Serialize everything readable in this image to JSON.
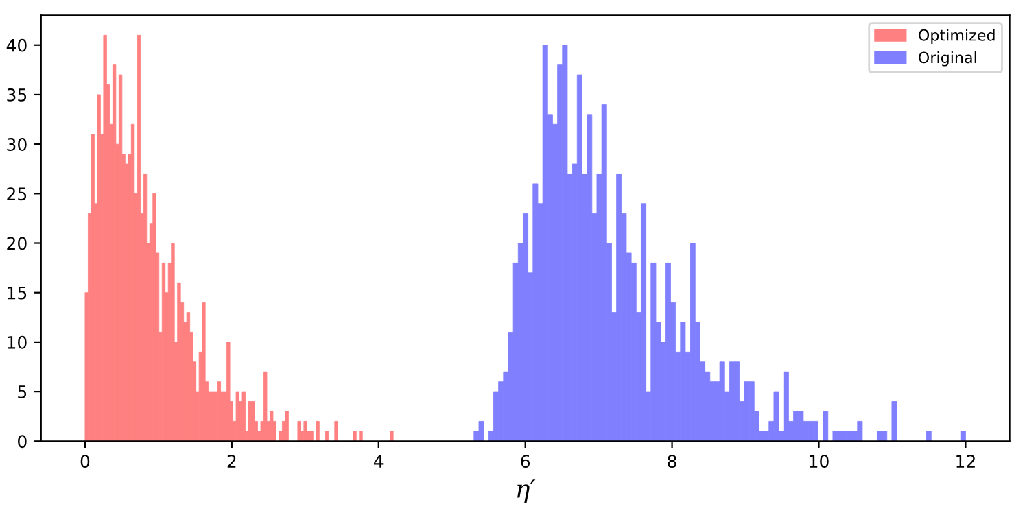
{
  "chart_data": {
    "type": "histogram",
    "xlabel": "η′",
    "xlim": [
      -0.6,
      12.6
    ],
    "xticks": [
      0,
      2,
      4,
      6,
      8,
      10,
      12
    ],
    "ylim": [
      0,
      43
    ],
    "yticks": [
      0,
      5,
      10,
      15,
      20,
      25,
      30,
      35,
      40
    ],
    "grid": false,
    "legend": "top right",
    "bins": [
      0,
      0.042,
      0.084,
      0.126,
      0.168,
      0.21,
      0.252,
      0.294,
      0.336,
      0.378,
      0.42,
      0.462,
      0.504,
      0.546,
      0.588,
      0.63,
      0.672,
      0.714,
      0.756,
      0.798,
      0.84,
      0.882,
      0.924,
      0.966,
      1.008,
      1.05,
      1.092,
      1.134,
      1.176,
      1.218,
      1.26,
      1.302,
      1.344,
      1.386,
      1.428,
      1.47,
      1.512,
      1.554,
      1.596,
      1.638,
      1.68,
      1.722,
      1.764,
      1.806,
      1.848,
      1.89,
      1.932,
      1.974,
      2.016,
      2.058,
      2.1,
      2.142,
      2.184,
      2.226,
      2.268,
      2.31,
      2.352,
      2.394,
      2.436,
      2.478,
      2.52,
      2.562,
      2.604,
      2.646,
      2.688,
      2.73,
      2.772,
      2.898,
      2.94,
      2.982,
      3.024,
      3.066,
      3.108,
      3.15,
      3.192,
      3.276,
      3.318,
      3.402,
      3.444,
      3.654,
      3.696,
      3.738,
      3.78,
      4.158,
      4.2,
      5.3,
      5.367,
      5.434,
      5.501,
      5.568,
      5.635,
      5.702,
      5.769,
      5.836,
      5.903,
      5.97,
      6.037,
      6.104,
      6.171,
      6.238,
      6.305,
      6.372,
      6.439,
      6.506,
      6.573,
      6.64,
      6.707,
      6.774,
      6.841,
      6.908,
      6.975,
      7.042,
      7.109,
      7.176,
      7.243,
      7.31,
      7.377,
      7.444,
      7.511,
      7.578,
      7.645,
      7.712,
      7.779,
      7.846,
      7.913,
      7.98,
      8.047,
      8.114,
      8.181,
      8.248,
      8.315,
      8.382,
      8.449,
      8.516,
      8.583,
      8.65,
      8.717,
      8.784,
      8.851,
      8.918,
      8.985,
      9.052,
      9.119,
      9.186,
      9.253,
      9.32,
      9.387,
      9.454,
      9.521,
      9.588,
      9.655,
      9.722,
      9.789,
      9.856,
      9.923,
      9.99,
      10.057,
      10.124,
      10.191,
      10.258,
      10.325,
      10.392,
      10.459,
      10.526,
      10.593,
      10.794,
      10.861,
      10.928,
      10.995,
      11.062,
      11.464,
      11.531,
      11.933,
      12.0
    ],
    "series": [
      {
        "name": "Optimized",
        "color": "#ff8080",
        "values": [
          15,
          23,
          31,
          24,
          35,
          31,
          41,
          36,
          32,
          38,
          30,
          37,
          29,
          28,
          29,
          32,
          25,
          41,
          23,
          27,
          20,
          22,
          25,
          19,
          11,
          18,
          15,
          18,
          20,
          10,
          16,
          14,
          12,
          13,
          11,
          8,
          5,
          9,
          14,
          6,
          5,
          5,
          5,
          6,
          5,
          5,
          10,
          4,
          2,
          5,
          4,
          5,
          1,
          4,
          4,
          2,
          1,
          2,
          7,
          2,
          3,
          2,
          0,
          1,
          2,
          3,
          0,
          2,
          1,
          2,
          1,
          1,
          0,
          2,
          0,
          1,
          0,
          2,
          0,
          1,
          0,
          1,
          0,
          1,
          null,
          null,
          null,
          null,
          null,
          null,
          null,
          null,
          null,
          null,
          null,
          null,
          null,
          null,
          null,
          null,
          null,
          null,
          null,
          null,
          null,
          null,
          null,
          null,
          null,
          null,
          null,
          null,
          null,
          null,
          null,
          null,
          null,
          null,
          null,
          null,
          null,
          null,
          null,
          null,
          null,
          null,
          null,
          null,
          null,
          null,
          null,
          null,
          null,
          null,
          null,
          null,
          null,
          null,
          null,
          null,
          null,
          null,
          null,
          null,
          null,
          null,
          null,
          null,
          null,
          null,
          null,
          null,
          null,
          null,
          null,
          null,
          null,
          null,
          null,
          null,
          null,
          null,
          null,
          null,
          null,
          null,
          null,
          null,
          null,
          null,
          null,
          null,
          null
        ]
      },
      {
        "name": "Original",
        "color": "#8080ff",
        "values": [
          null,
          null,
          null,
          null,
          null,
          null,
          null,
          null,
          null,
          null,
          null,
          null,
          null,
          null,
          null,
          null,
          null,
          null,
          null,
          null,
          null,
          null,
          null,
          null,
          null,
          null,
          null,
          null,
          null,
          null,
          null,
          null,
          null,
          null,
          null,
          null,
          null,
          null,
          null,
          null,
          null,
          null,
          null,
          null,
          null,
          null,
          null,
          null,
          null,
          null,
          null,
          null,
          null,
          null,
          null,
          null,
          null,
          null,
          null,
          null,
          null,
          null,
          null,
          null,
          null,
          null,
          null,
          null,
          null,
          null,
          null,
          null,
          null,
          null,
          null,
          null,
          null,
          null,
          null,
          null,
          null,
          null,
          null,
          null,
          null,
          1,
          2,
          0,
          1,
          5,
          6,
          7,
          11,
          18,
          20,
          23,
          17,
          26,
          24,
          40,
          33,
          32,
          38,
          40,
          27,
          28,
          37,
          27,
          33,
          23,
          27,
          34,
          20,
          13,
          27,
          23,
          19,
          18,
          13,
          24,
          5,
          18,
          12,
          10,
          18,
          14,
          9,
          12,
          9,
          20,
          12,
          8,
          7,
          6,
          6,
          8,
          5,
          8,
          8,
          4,
          6,
          6,
          3,
          1,
          1,
          2,
          5,
          1,
          7,
          2,
          3,
          3,
          2,
          2,
          2,
          0,
          3,
          0,
          1,
          1,
          1,
          1,
          1,
          2,
          0,
          1,
          1,
          0,
          4,
          0,
          1,
          0,
          1
        ]
      }
    ]
  }
}
